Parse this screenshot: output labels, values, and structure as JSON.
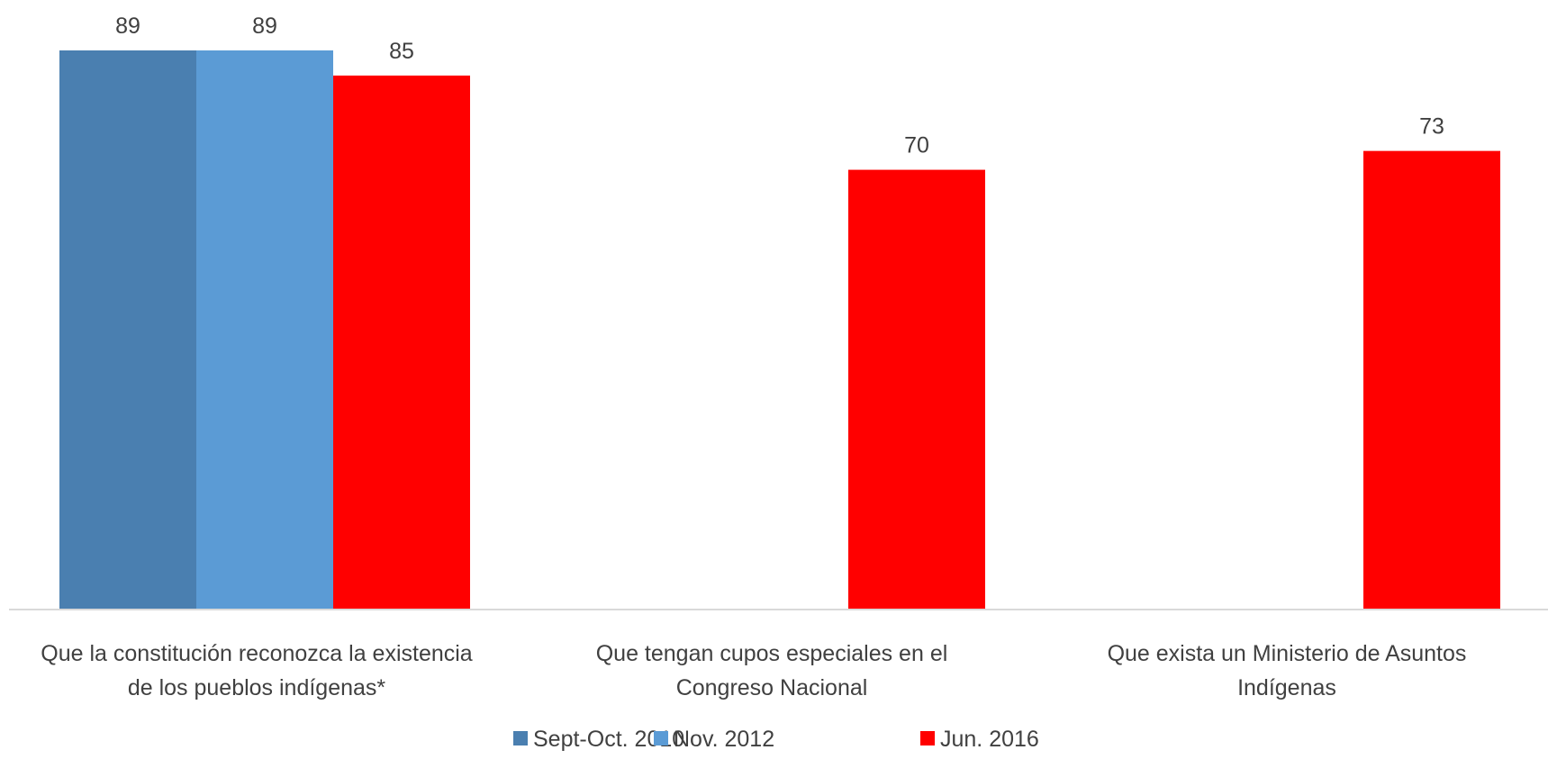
{
  "chart_data": {
    "type": "bar",
    "categories": [
      [
        "Que la constitución reconozca la existencia",
        "de los pueblos indígenas*"
      ],
      [
        "Que tengan cupos especiales en el",
        "Congreso Nacional"
      ],
      [
        "Que exista un Ministerio de Asuntos",
        "Indígenas"
      ]
    ],
    "series": [
      {
        "name": "Sept-Oct. 2010",
        "color": "#4a7fb0",
        "values": [
          89,
          null,
          null
        ]
      },
      {
        "name": "Nov. 2012",
        "color": "#5b9bd5",
        "values": [
          89,
          null,
          null
        ]
      },
      {
        "name": "Jun. 2016",
        "color": "#ff0000",
        "values": [
          85,
          70,
          73
        ]
      }
    ],
    "ylim": [
      0,
      89
    ],
    "grid": false,
    "legend_position": "bottom",
    "data_labels": true
  }
}
